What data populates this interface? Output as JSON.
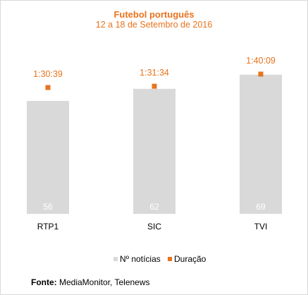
{
  "chart_data": {
    "type": "bar",
    "title": "Futebol português",
    "subtitle": "12 a 18 de Setembro de 2016",
    "categories": [
      "RTP1",
      "SIC",
      "TVI"
    ],
    "series": [
      {
        "name": "Nº notícias",
        "kind": "bar",
        "color": "#d9d9d9",
        "values": [
          56,
          62,
          69
        ],
        "labels": [
          "56",
          "62",
          "69"
        ]
      },
      {
        "name": "Duração",
        "kind": "marker",
        "color": "#e8731e",
        "values": [
          90.65,
          91.57,
          100.15
        ],
        "labels": [
          "1:30:39",
          "1:31:34",
          "1:40:09"
        ]
      }
    ],
    "legend_position": "bottom",
    "grid": false
  },
  "source": {
    "prefix": "Fonte:",
    "text": " MediaMonitor, Telenews"
  }
}
